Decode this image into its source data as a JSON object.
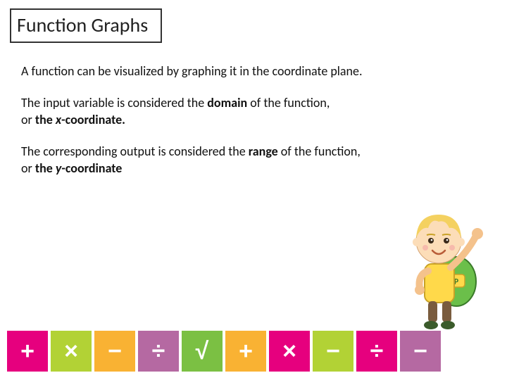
{
  "title": "Function  Graphs",
  "paragraphs": {
    "p1": "A function can be visualized by graphing it in the coordinate plane.",
    "p2_a": "The input variable is considered the ",
    "p2_b": "domain",
    "p2_c": " of the function,",
    "p2_d": "or ",
    "p2_e": "the ",
    "p2_f": "x",
    "p2_g": "-coordinate.",
    "p3_a": "The corresponding output is considered the ",
    "p3_b": "range",
    "p3_c": " of the function,",
    "p3_d": "or ",
    "p3_e": "the ",
    "p3_f": "y",
    "p3_g": "-coordinate"
  },
  "tiles": [
    {
      "symbol": "+",
      "color": "#e6007e"
    },
    {
      "symbol": "×",
      "color": "#b2d235"
    },
    {
      "symbol": "−",
      "color": "#f9b233"
    },
    {
      "symbol": "÷",
      "color": "#b569a2"
    },
    {
      "symbol": "√",
      "color": "#7bc043"
    },
    {
      "symbol": "+",
      "color": "#f9b233"
    },
    {
      "symbol": "×",
      "color": "#e6007e"
    },
    {
      "symbol": "−",
      "color": "#b2d235"
    },
    {
      "symbol": "÷",
      "color": "#e6007e"
    },
    {
      "symbol": "−",
      "color": "#b569a2"
    }
  ],
  "colors": {
    "text": "#111111",
    "border": "#333333",
    "background": "#ffffff"
  },
  "typography": {
    "title_fontsize": 28,
    "body_fontsize": 18
  }
}
